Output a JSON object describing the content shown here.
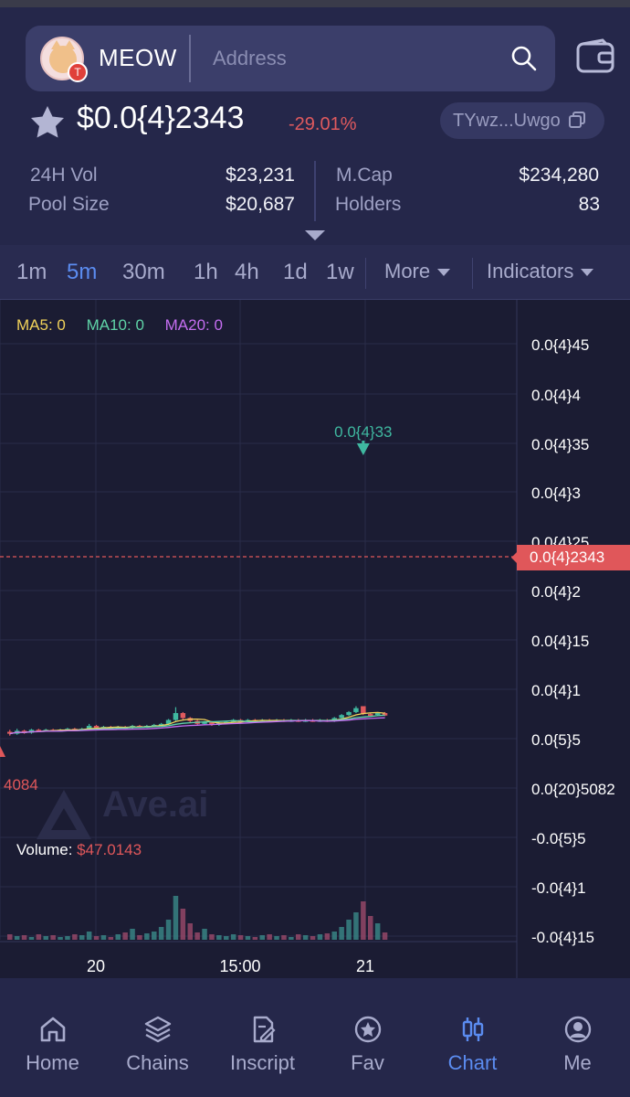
{
  "header": {
    "token_name": "MEOW",
    "address_placeholder": "Address",
    "chain_badge": "T"
  },
  "token": {
    "price": "$0.0{4}2343",
    "change": "-29.01%",
    "short_address": "TYwz...Uwgo"
  },
  "stats": {
    "vol_label": "24H Vol",
    "vol_value": "$23,231",
    "pool_label": "Pool Size",
    "pool_value": "$20,687",
    "mcap_label": "M.Cap",
    "mcap_value": "$234,280",
    "holders_label": "Holders",
    "holders_value": "83"
  },
  "timeframes": [
    "1m",
    "5m",
    "30m",
    "1h",
    "4h",
    "1d",
    "1w"
  ],
  "active_timeframe": "5m",
  "more_label": "More",
  "indicators_label": "Indicators",
  "chart": {
    "ma5": "MA5: 0",
    "ma10": "MA10: 0",
    "ma20": "MA20: 0",
    "watermark": "Ave.ai",
    "volume_label": "Volume:",
    "volume_value": "$47.0143",
    "current_price_tag": "0.0{4}2343",
    "high_marker": "0.0{4}33",
    "low_marker": "4084",
    "y_ticks": [
      "0.0{4}45",
      "0.0{4}4",
      "0.0{4}35",
      "0.0{4}3",
      "0.0{4}25",
      "0.0{4}2",
      "0.0{4}15",
      "0.0{4}1",
      "0.0{5}5",
      "0.0{20}5082",
      "-0.0{5}5",
      "-0.0{4}1",
      "-0.0{4}15"
    ],
    "x_ticks": [
      "20",
      "15:00",
      "21"
    ],
    "colors": {
      "up": "#3fb8a0",
      "down": "#e05a5e",
      "ma5": "#f1d25a",
      "ma10": "#5fd3a7",
      "ma20": "#c46df0"
    }
  },
  "nav": [
    {
      "label": "Home",
      "icon": "home-icon"
    },
    {
      "label": "Chains",
      "icon": "layers-icon"
    },
    {
      "label": "Inscript",
      "icon": "edit-doc-icon"
    },
    {
      "label": "Fav",
      "icon": "star-badge-icon"
    },
    {
      "label": "Chart",
      "icon": "candles-icon"
    },
    {
      "label": "Me",
      "icon": "user-icon"
    }
  ],
  "active_nav": "Chart"
}
